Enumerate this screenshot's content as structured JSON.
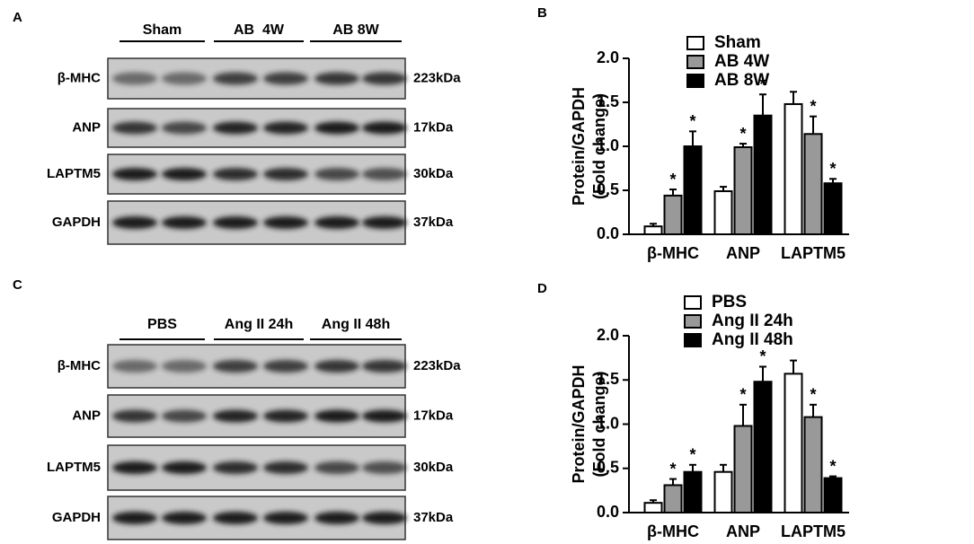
{
  "blots": [
    {
      "panel": "A",
      "groups": [
        "Sham",
        "AB  4W",
        "AB 8W"
      ],
      "rows": [
        {
          "label": "β-MHC",
          "size": "223kDa"
        },
        {
          "label": "ANP",
          "size": "17kDa"
        },
        {
          "label": "LAPTM5",
          "size": "30kDa"
        },
        {
          "label": "GAPDH",
          "size": "37kDa"
        }
      ]
    },
    {
      "panel": "C",
      "groups": [
        "PBS",
        "Ang II 24h",
        "Ang II 48h"
      ],
      "rows": [
        {
          "label": "β-MHC",
          "size": "223kDa"
        },
        {
          "label": "ANP",
          "size": "17kDa"
        },
        {
          "label": "LAPTM5",
          "size": "30kDa"
        },
        {
          "label": "GAPDH",
          "size": "37kDa"
        }
      ]
    }
  ],
  "chart_data": [
    {
      "type": "bar",
      "panel": "B",
      "ylabel": [
        "Protein/GAPDH",
        "(Fold change)"
      ],
      "categories": [
        "β-MHC",
        "ANP",
        "LAPTM5"
      ],
      "ylim": [
        0,
        2.0
      ],
      "yticks": [
        {
          "value": 0,
          "label": "0.0"
        },
        0.5,
        {
          "value": 1,
          "label": "1.0"
        },
        1.5,
        {
          "value": 2,
          "label": "2.0"
        }
      ],
      "series": [
        {
          "name": "Sham",
          "color": "#ffffff",
          "values": [
            0.09,
            0.49,
            1.48
          ],
          "errors": [
            0.03,
            0.05,
            0.14
          ],
          "stars": [
            null,
            null,
            null
          ]
        },
        {
          "name": "AB 4W",
          "color": "#999999",
          "values": [
            0.44,
            0.99,
            1.14
          ],
          "errors": [
            0.07,
            0.04,
            0.2
          ],
          "stars": [
            "*",
            "*",
            "*"
          ]
        },
        {
          "name": "AB 8W",
          "color": "#000000",
          "values": [
            1.0,
            1.35,
            0.58
          ],
          "errors": [
            0.17,
            0.24,
            0.05
          ],
          "stars": [
            "*",
            "*",
            "*"
          ]
        }
      ]
    },
    {
      "type": "bar",
      "panel": "D",
      "ylabel": [
        "Protein/GAPDH",
        "(Fold change)"
      ],
      "categories": [
        "β-MHC",
        "ANP",
        "LAPTM5"
      ],
      "ylim": [
        0,
        2.0
      ],
      "yticks": [
        {
          "value": 0,
          "label": "0.0"
        },
        0.5,
        {
          "value": 1,
          "label": "1.0"
        },
        1.5,
        {
          "value": 2,
          "label": "2.0"
        }
      ],
      "series": [
        {
          "name": "PBS",
          "color": "#ffffff",
          "values": [
            0.11,
            0.46,
            1.57
          ],
          "errors": [
            0.03,
            0.08,
            0.15
          ],
          "stars": [
            null,
            null,
            null
          ]
        },
        {
          "name": "Ang II 24h",
          "color": "#999999",
          "values": [
            0.31,
            0.98,
            1.08
          ],
          "errors": [
            0.07,
            0.24,
            0.14
          ],
          "stars": [
            "*",
            "*",
            "*"
          ]
        },
        {
          "name": "Ang II 48h",
          "color": "#000000",
          "values": [
            0.46,
            1.48,
            0.39
          ],
          "errors": [
            0.08,
            0.17,
            0.02
          ],
          "stars": [
            "*",
            "*",
            "*"
          ]
        }
      ]
    }
  ]
}
